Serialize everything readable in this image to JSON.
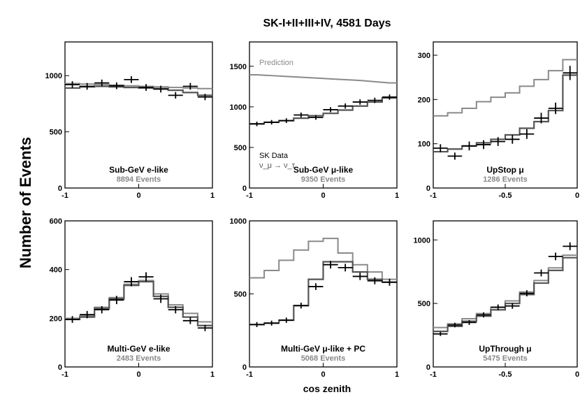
{
  "figure": {
    "title": "SK-I+II+III+IV, 4581 Days",
    "ylabel": "Number of Events",
    "xlabel": "cos zenith"
  },
  "colors": {
    "data": "#000000",
    "prediction": "#8a8a8a",
    "oscillated": "#555555"
  },
  "chart_data": [
    {
      "type": "line",
      "name": "Sub-GeV e-like",
      "events_label": "8894 Events",
      "xlim": [
        -1,
        1
      ],
      "ylim": [
        0,
        1300
      ],
      "xticks": [
        -1,
        0,
        1
      ],
      "yticks": [
        0,
        500,
        1000
      ],
      "bin_edges": [
        -1,
        -0.8,
        -0.6,
        -0.4,
        -0.2,
        0,
        0.2,
        0.4,
        0.6,
        0.8,
        1
      ],
      "prediction": [
        930,
        925,
        920,
        915,
        910,
        905,
        900,
        895,
        890,
        885
      ],
      "oscillated": [
        890,
        900,
        905,
        900,
        895,
        890,
        885,
        870,
        850,
        825
      ],
      "data": [
        920,
        905,
        935,
        910,
        965,
        895,
        880,
        825,
        905,
        810
      ],
      "data_err": [
        30,
        30,
        30,
        30,
        30,
        30,
        30,
        29,
        30,
        28
      ]
    },
    {
      "type": "line",
      "name": "Sub-GeV μ-like",
      "events_label": "9350 Events",
      "annotations": [
        "Prediction",
        "SK Data",
        "ν_μ → ν_τ"
      ],
      "xlim": [
        -1,
        1
      ],
      "ylim": [
        0,
        1800
      ],
      "xticks": [
        -1,
        0,
        1
      ],
      "yticks": [
        0,
        500,
        1000,
        1500
      ],
      "bin_edges": [
        -1,
        -0.8,
        -0.6,
        -0.4,
        -0.2,
        0,
        0.2,
        0.4,
        0.6,
        0.8,
        1
      ],
      "prediction": [
        1395,
        1385,
        1375,
        1365,
        1355,
        1345,
        1335,
        1325,
        1310,
        1295
      ],
      "oscillated": [
        790,
        810,
        830,
        860,
        890,
        920,
        960,
        1010,
        1060,
        1110
      ],
      "data": [
        790,
        810,
        830,
        900,
        870,
        965,
        1010,
        1060,
        1080,
        1120
      ],
      "data_err": [
        28,
        28,
        29,
        30,
        29,
        31,
        32,
        33,
        33,
        33
      ]
    },
    {
      "type": "line",
      "name": "UpStop μ",
      "events_label": "1286 Events",
      "xlim": [
        -1,
        0
      ],
      "ylim": [
        0,
        330
      ],
      "xticks": [
        -1,
        -0.5,
        0
      ],
      "yticks": [
        0,
        100,
        200,
        300
      ],
      "bin_edges": [
        -1,
        -0.9,
        -0.8,
        -0.7,
        -0.6,
        -0.5,
        -0.4,
        -0.3,
        -0.2,
        -0.1,
        0
      ],
      "prediction": [
        163,
        170,
        180,
        195,
        205,
        215,
        230,
        245,
        265,
        290
      ],
      "oscillated": [
        82,
        88,
        95,
        102,
        110,
        120,
        135,
        150,
        175,
        255
      ],
      "data": [
        90,
        72,
        95,
        98,
        105,
        110,
        122,
        158,
        180,
        260
      ],
      "data_err": [
        9,
        8,
        10,
        10,
        10,
        10,
        11,
        12,
        13,
        16
      ]
    },
    {
      "type": "line",
      "name": "Multi-GeV e-like",
      "events_label": "2483 Events",
      "xlim": [
        -1,
        1
      ],
      "ylim": [
        0,
        600
      ],
      "xticks": [
        -1,
        0,
        1
      ],
      "yticks": [
        0,
        200,
        400,
        600
      ],
      "bin_edges": [
        -1,
        -0.8,
        -0.6,
        -0.4,
        -0.2,
        0,
        0.2,
        0.4,
        0.6,
        0.8,
        1
      ],
      "prediction": [
        200,
        210,
        245,
        285,
        340,
        355,
        300,
        255,
        220,
        185
      ],
      "oscillated": [
        195,
        205,
        240,
        280,
        335,
        350,
        290,
        245,
        205,
        170
      ],
      "data": [
        195,
        215,
        235,
        275,
        350,
        370,
        280,
        235,
        190,
        160
      ],
      "data_err": [
        14,
        15,
        15,
        17,
        19,
        19,
        17,
        15,
        14,
        13
      ]
    },
    {
      "type": "line",
      "name": "Multi-GeV μ-like + PC",
      "events_label": "5068 Events",
      "xlim": [
        -1,
        1
      ],
      "ylim": [
        0,
        1000
      ],
      "xticks": [
        -1,
        0,
        1
      ],
      "yticks": [
        0,
        500,
        1000
      ],
      "bin_edges": [
        -1,
        -0.8,
        -0.6,
        -0.4,
        -0.2,
        0,
        0.2,
        0.4,
        0.6,
        0.8,
        1
      ],
      "prediction": [
        610,
        660,
        730,
        800,
        860,
        880,
        780,
        700,
        650,
        600
      ],
      "oscillated": [
        290,
        300,
        320,
        420,
        600,
        720,
        720,
        650,
        600,
        580
      ],
      "data": [
        290,
        300,
        320,
        420,
        550,
        700,
        680,
        620,
        590,
        580
      ],
      "data_err": [
        17,
        17,
        18,
        20,
        23,
        26,
        26,
        25,
        24,
        24
      ]
    },
    {
      "type": "line",
      "name": "UpThrough μ",
      "events_label": "5475 Events",
      "xlim": [
        -1,
        0
      ],
      "ylim": [
        0,
        1150
      ],
      "xticks": [
        -1,
        -0.5,
        0
      ],
      "yticks": [
        0,
        500,
        1000
      ],
      "bin_edges": [
        -1,
        -0.9,
        -0.8,
        -0.7,
        -0.6,
        -0.5,
        -0.4,
        -0.3,
        -0.2,
        -0.1,
        0
      ],
      "prediction": [
        310,
        340,
        380,
        420,
        470,
        520,
        590,
        680,
        780,
        880
      ],
      "oscillated": [
        280,
        320,
        360,
        400,
        450,
        500,
        570,
        660,
        760,
        860
      ],
      "data": [
        260,
        330,
        350,
        410,
        470,
        480,
        580,
        740,
        870,
        950
      ],
      "data_err": [
        16,
        18,
        19,
        20,
        22,
        22,
        24,
        27,
        30,
        31
      ]
    }
  ]
}
